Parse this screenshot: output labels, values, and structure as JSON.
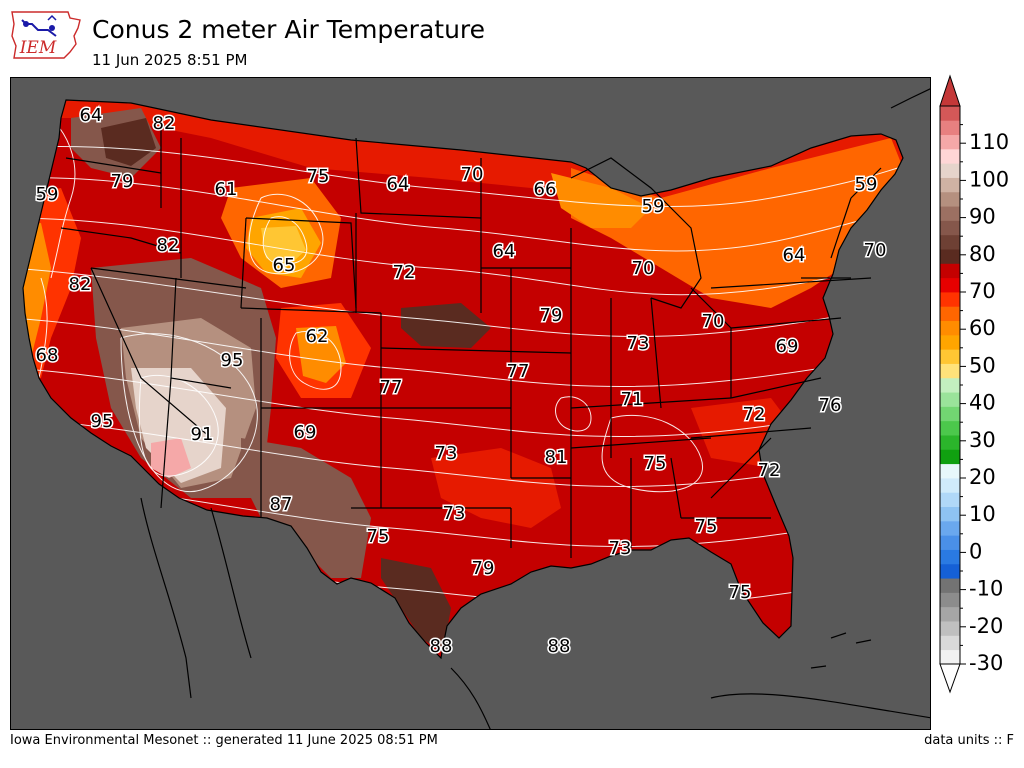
{
  "header": {
    "title": "Conus 2 meter Air Temperature",
    "subtitle": "11 Jun 2025 8:51 PM",
    "logo_text": "IEM"
  },
  "footer": {
    "left": "Iowa Environmental Mesonet :: generated 11 June 2025 08:51 PM",
    "right": "data units :: F"
  },
  "colors": {
    "ocean_background": "#595959",
    "coastline": "#000000",
    "contour_line": "#ffffff"
  },
  "map_labels": [
    {
      "value": "64",
      "region": "Washington coast"
    },
    {
      "value": "82",
      "region": "Eastern Washington"
    },
    {
      "value": "59",
      "region": "Oregon coast"
    },
    {
      "value": "79",
      "region": "Central Oregon"
    },
    {
      "value": "61",
      "region": "Western Montana"
    },
    {
      "value": "75",
      "region": "Central Montana"
    },
    {
      "value": "64",
      "region": "Western North Dakota"
    },
    {
      "value": "70",
      "region": "Eastern North Dakota"
    },
    {
      "value": "66",
      "region": "Northern Minnesota"
    },
    {
      "value": "59",
      "region": "Upper Michigan"
    },
    {
      "value": "59",
      "region": "Maine"
    },
    {
      "value": "82",
      "region": "Southern Idaho"
    },
    {
      "value": "65",
      "region": "Wyoming"
    },
    {
      "value": "72",
      "region": "South Dakota"
    },
    {
      "value": "64",
      "region": "Iowa / Minnesota"
    },
    {
      "value": "70",
      "region": "Michigan"
    },
    {
      "value": "64",
      "region": "New York"
    },
    {
      "value": "70",
      "region": "Massachusetts"
    },
    {
      "value": "82",
      "region": "Northern California"
    },
    {
      "value": "68",
      "region": "California coast"
    },
    {
      "value": "95",
      "region": "Nevada"
    },
    {
      "value": "62",
      "region": "Colorado"
    },
    {
      "value": "79",
      "region": "Eastern Nebraska"
    },
    {
      "value": "73",
      "region": "Indiana"
    },
    {
      "value": "70",
      "region": "Ohio"
    },
    {
      "value": "69",
      "region": "Virginia"
    },
    {
      "value": "77",
      "region": "Western Kansas"
    },
    {
      "value": "77",
      "region": "Missouri"
    },
    {
      "value": "71",
      "region": "Kentucky"
    },
    {
      "value": "72",
      "region": "North Carolina"
    },
    {
      "value": "76",
      "region": "Outer Banks"
    },
    {
      "value": "95",
      "region": "Southern California"
    },
    {
      "value": "91",
      "region": "Arizona"
    },
    {
      "value": "69",
      "region": "New Mexico"
    },
    {
      "value": "73",
      "region": "Oklahoma"
    },
    {
      "value": "81",
      "region": "Arkansas"
    },
    {
      "value": "75",
      "region": "Alabama"
    },
    {
      "value": "72",
      "region": "South Carolina"
    },
    {
      "value": "87",
      "region": "West Texas"
    },
    {
      "value": "73",
      "region": "North Texas"
    },
    {
      "value": "75",
      "region": "Georgia"
    },
    {
      "value": "75",
      "region": "Texas Panhandle"
    },
    {
      "value": "73",
      "region": "Louisiana coast"
    },
    {
      "value": "79",
      "region": "South Texas"
    },
    {
      "value": "75",
      "region": "Florida"
    },
    {
      "value": "88",
      "region": "South Texas tip"
    },
    {
      "value": "88",
      "region": "Gulf of Mexico"
    }
  ],
  "colorbar": {
    "min": -30,
    "max": 120,
    "step": 5,
    "extend": "both",
    "tick_labels": [
      "110",
      "100",
      "90",
      "80",
      "70",
      "60",
      "50",
      "40",
      "30",
      "20",
      "10",
      "0",
      "-10",
      "-20",
      "-30"
    ],
    "colors": [
      "#f2f2f2",
      "#d9d9d9",
      "#bfbfbf",
      "#a6a6a6",
      "#8c8c8c",
      "#737373",
      "#1560d6",
      "#2a7ae2",
      "#4a90e8",
      "#6aa8ee",
      "#8ec3f3",
      "#b0d8f8",
      "#d0ebfb",
      "#e8f8fb",
      "#10a010",
      "#2bb52b",
      "#4cc84c",
      "#72d672",
      "#9ae39a",
      "#c3efbf",
      "#ffe27a",
      "#ffc633",
      "#ffa500",
      "#ff8c00",
      "#ff6600",
      "#ff3300",
      "#e60000",
      "#c40000",
      "#5a2b20",
      "#6e4034",
      "#85574b",
      "#9c7062",
      "#b5907f",
      "#cfb2a3",
      "#e6d4cb",
      "#ffd6d6",
      "#f5a8a8",
      "#e88080",
      "#d45858"
    ],
    "extend_high_color": "#c43838",
    "extend_low_color": "#ffffff"
  }
}
